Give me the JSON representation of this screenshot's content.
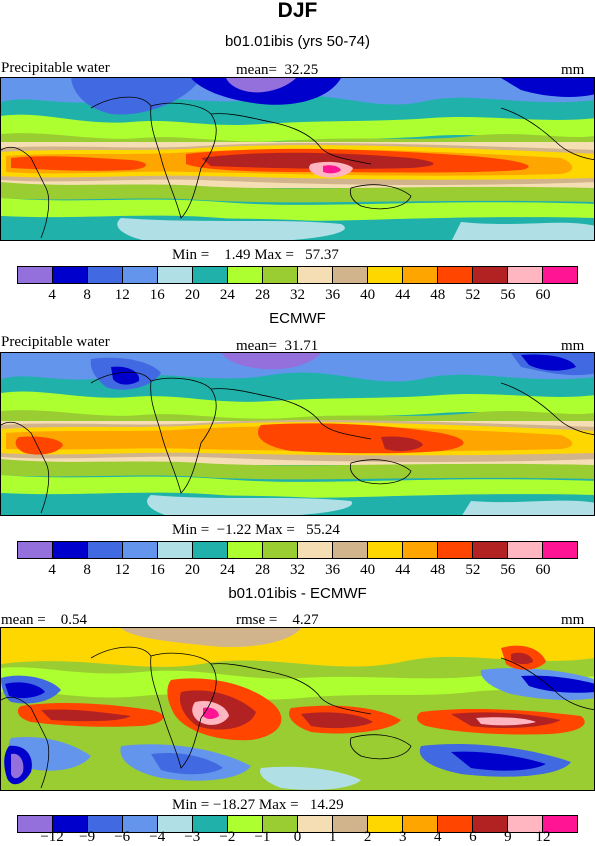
{
  "header": {
    "title": "DJF"
  },
  "panels": [
    {
      "subtitle": "b01.01ibis (yrs 50-74)",
      "left_label": "Precipitable water",
      "center_label": "mean=  32.25",
      "right_label": "mm",
      "minmax": "Min =    1.49 Max =   57.37",
      "colorbar": {
        "ticks": [
          "4",
          "8",
          "12",
          "16",
          "20",
          "24",
          "28",
          "32",
          "36",
          "40",
          "44",
          "48",
          "52",
          "56",
          "60"
        ],
        "colors": [
          "#9370db",
          "#0000cd",
          "#4169e1",
          "#6495ed",
          "#b0e0e6",
          "#20b2aa",
          "#adff2f",
          "#9acd32",
          "#f5deb3",
          "#d2b48c",
          "#ffd700",
          "#ffa500",
          "#ff4500",
          "#b22222",
          "#ffb6c1",
          "#ff1493"
        ]
      }
    },
    {
      "subtitle": "ECMWF",
      "left_label": "Precipitable water",
      "center_label": "mean=  31.71",
      "right_label": "mm",
      "minmax": "Min =  −1.22 Max =   55.24",
      "colorbar": {
        "ticks": [
          "4",
          "8",
          "12",
          "16",
          "20",
          "24",
          "28",
          "32",
          "36",
          "40",
          "44",
          "48",
          "52",
          "56",
          "60"
        ],
        "colors": [
          "#9370db",
          "#0000cd",
          "#4169e1",
          "#6495ed",
          "#b0e0e6",
          "#20b2aa",
          "#adff2f",
          "#9acd32",
          "#f5deb3",
          "#d2b48c",
          "#ffd700",
          "#ffa500",
          "#ff4500",
          "#b22222",
          "#ffb6c1",
          "#ff1493"
        ]
      }
    },
    {
      "subtitle": "b01.01ibis - ECMWF",
      "left_label": "mean =    0.54",
      "center_label": "rmse =    4.27",
      "right_label": "mm",
      "minmax": "Min = −18.27 Max =   14.29",
      "colorbar": {
        "ticks": [
          "−12",
          "−9",
          "−6",
          "−4",
          "−3",
          "−2",
          "−1",
          "0",
          "1",
          "2",
          "3",
          "4",
          "6",
          "9",
          "12"
        ],
        "colors": [
          "#9370db",
          "#0000cd",
          "#4169e1",
          "#6495ed",
          "#b0e0e6",
          "#20b2aa",
          "#adff2f",
          "#9acd32",
          "#f5deb3",
          "#d2b48c",
          "#ffd700",
          "#ffa500",
          "#ff4500",
          "#b22222",
          "#ffb6c1",
          "#ff1493"
        ]
      }
    }
  ],
  "chart_data": [
    {
      "type": "heatmap",
      "title": "b01.01ibis (yrs 50-74)",
      "variable": "Precipitable water",
      "units": "mm",
      "mean": 32.25,
      "min": 1.49,
      "max": 57.37,
      "contour_levels": [
        4,
        8,
        12,
        16,
        20,
        24,
        28,
        32,
        36,
        40,
        44,
        48,
        52,
        56,
        60
      ]
    },
    {
      "type": "heatmap",
      "title": "ECMWF",
      "variable": "Precipitable water",
      "units": "mm",
      "mean": 31.71,
      "min": -1.22,
      "max": 55.24,
      "contour_levels": [
        4,
        8,
        12,
        16,
        20,
        24,
        28,
        32,
        36,
        40,
        44,
        48,
        52,
        56,
        60
      ]
    },
    {
      "type": "heatmap",
      "title": "b01.01ibis - ECMWF",
      "units": "mm",
      "mean": 0.54,
      "rmse": 4.27,
      "min": -18.27,
      "max": 14.29,
      "contour_levels": [
        -12,
        -9,
        -6,
        -4,
        -3,
        -2,
        -1,
        0,
        1,
        2,
        3,
        4,
        6,
        9,
        12
      ]
    }
  ]
}
